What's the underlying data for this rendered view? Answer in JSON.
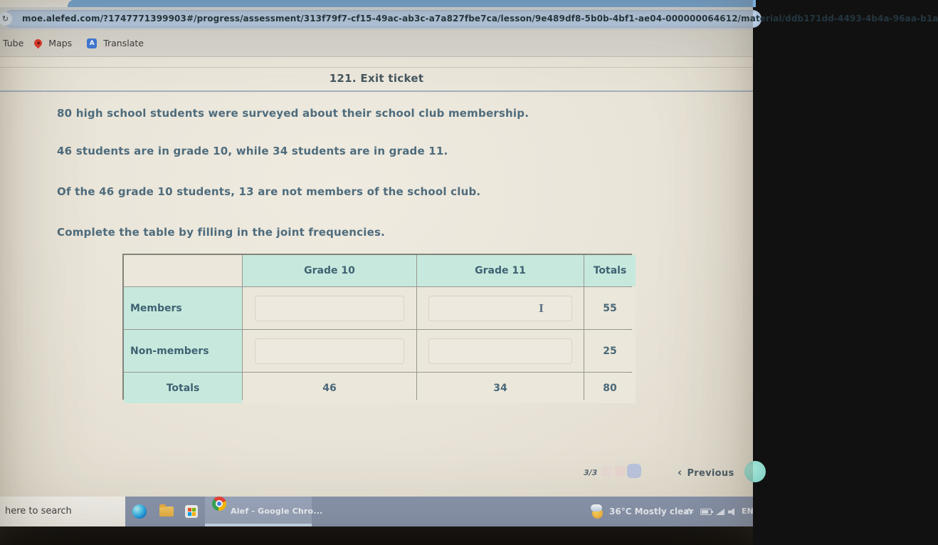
{
  "colors": {
    "page_bg": "#e9e4d8",
    "accent_mint": "#c7e9dd",
    "text_primary": "#4e6c7d",
    "tab_blue": "#7aacda",
    "url_pill_blue": "#b7cce4",
    "taskbar_blue": "#8894ac",
    "next_circle_teal": "#7ccfc1"
  },
  "browser": {
    "url": "moe.alefed.com/?1747771399903#/progress/assessment/313f79f7-cf15-49ac-ab3c-a7a827fbe7ca/lesson/9e489df8-5b0b-4bf1-ae04-000000064612/material/ddb171dd-4493-4b4a-96aa-b1a",
    "reload_glyph": "↻",
    "bookmarks": {
      "item1": "Tube",
      "item2": "Maps",
      "item3": "Translate"
    }
  },
  "assessment": {
    "title": "121. Exit ticket",
    "paragraph1": "80 high school students were surveyed about their school club membership.",
    "paragraph2": "46 students are in grade 10, while 34 students are in grade 11.",
    "paragraph3": "Of the 46 grade 10 students, 13 are not members of the school club.",
    "paragraph4": "Complete the table by filling in the joint frequencies.",
    "table": {
      "col_grade10": "Grade 10",
      "col_grade11": "Grade 11",
      "col_totals": "Totals",
      "row_members": {
        "label": "Members",
        "grade10_value": "",
        "grade11_value": "",
        "total": "55"
      },
      "row_nonmembers": {
        "label": "Non-members",
        "grade10_value": "",
        "grade11_value": "",
        "total": "25"
      },
      "row_totals": {
        "label": "Totals",
        "grade10": "46",
        "grade11": "34",
        "total": "80"
      }
    },
    "cursor_glyph": "I",
    "pagination": {
      "position": "3/3",
      "prev_chevron": "‹",
      "previous": "Previous"
    }
  },
  "taskbar": {
    "search_text": "here to search",
    "chrome_task": "Alef - Google Chro...",
    "weather": "36°C Mostly clear",
    "language": "EN"
  }
}
